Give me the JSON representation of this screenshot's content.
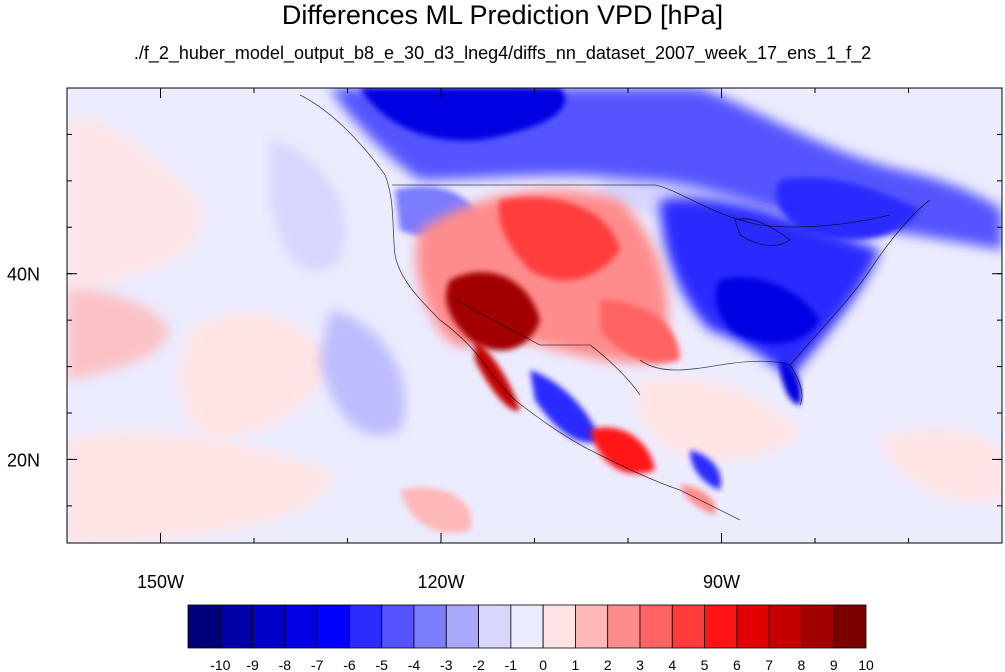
{
  "title": "Differences ML Prediction VPD [hPa]",
  "subtitle": "./f_2_huber_model_output_b8_e_30_d3_lneg4/diffs_nn_dataset_2007_week_17_ens_1_f_2",
  "map": {
    "lon_range": [
      -160,
      -60
    ],
    "lat_range": [
      11,
      60
    ],
    "lon_ticks": [
      {
        "value": -150,
        "label": "150W"
      },
      {
        "value": -120,
        "label": "120W"
      },
      {
        "value": -90,
        "label": "90W"
      }
    ],
    "lat_ticks": [
      {
        "value": 40,
        "label": "40N"
      },
      {
        "value": 20,
        "label": "20N"
      }
    ]
  },
  "colorbar": {
    "levels": [
      "-10",
      "-9",
      "-8",
      "-7",
      "-6",
      "-5",
      "-4",
      "-3",
      "-2",
      "-1",
      "0",
      "1",
      "2",
      "3",
      "4",
      "5",
      "6",
      "7",
      "8",
      "9",
      "10"
    ],
    "colors": [
      "#00007a",
      "#0000a8",
      "#0000c8",
      "#0000e2",
      "#0000ff",
      "#2c2cff",
      "#5454ff",
      "#7c7cff",
      "#a8a8ff",
      "#d6d6ff",
      "#ececff",
      "#ffe4e4",
      "#ffb8b8",
      "#ff8c8c",
      "#ff6464",
      "#ff3c3c",
      "#ff1414",
      "#e20000",
      "#c40000",
      "#a20000",
      "#7c0000"
    ]
  },
  "regions": [
    {
      "name": "north-pacific-blue",
      "color": "#ececff"
    },
    {
      "name": "canada-blue",
      "color": "#0000e2"
    },
    {
      "name": "southwest-red",
      "color": "#c40000"
    },
    {
      "name": "east-us-blue",
      "color": "#2c2cff"
    },
    {
      "name": "mexico-red",
      "color": "#ff3c3c"
    }
  ]
}
